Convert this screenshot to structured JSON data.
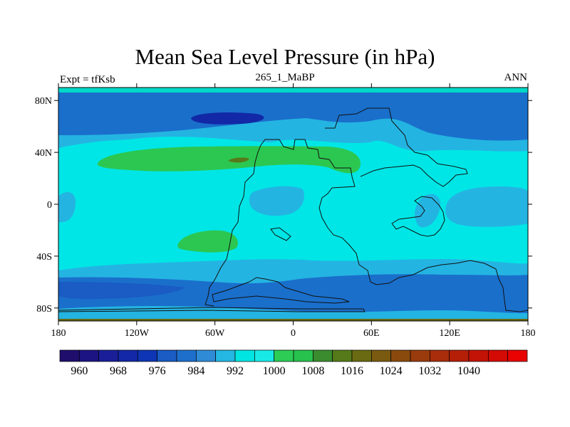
{
  "title": "Mean Sea Level Pressure (in hPa)",
  "subtitle_left": "Expt = tfKsb",
  "subtitle_center": "265_1_MaBP",
  "subtitle_right": "ANN",
  "map": {
    "lon_range": [
      -180,
      180
    ],
    "lat_range": [
      -90,
      90
    ],
    "lon_ticks": [
      {
        "value": -180,
        "label": "180"
      },
      {
        "value": -120,
        "label": "120W"
      },
      {
        "value": -60,
        "label": "60W"
      },
      {
        "value": 0,
        "label": "0"
      },
      {
        "value": 60,
        "label": "60E"
      },
      {
        "value": 120,
        "label": "120E"
      },
      {
        "value": 180,
        "label": "180"
      }
    ],
    "lat_ticks": [
      {
        "value": 80,
        "label": "80N"
      },
      {
        "value": 40,
        "label": "40N"
      },
      {
        "value": 0,
        "label": "0"
      },
      {
        "value": -40,
        "label": "40S"
      },
      {
        "value": -80,
        "label": "80S"
      }
    ]
  },
  "colorbar": {
    "colors": [
      "#1f0e6b",
      "#1d1483",
      "#1a1f98",
      "#1228a6",
      "#0e36b4",
      "#1a5bc4",
      "#1e6fcb",
      "#2f8bd6",
      "#24b7e2",
      "#00e5e2",
      "#18e9e6",
      "#2ccc55",
      "#27c14e",
      "#3a8c2e",
      "#567a1a",
      "#6a6a12",
      "#7a5a10",
      "#8a4a0e",
      "#993b0c",
      "#a82d0a",
      "#b51f08",
      "#c31206",
      "#d40a04",
      "#e80202"
    ],
    "labels": [
      "960",
      "968",
      "976",
      "984",
      "992",
      "1000",
      "1008",
      "1016",
      "1024",
      "1032",
      "1040"
    ]
  },
  "fields": {
    "background_color": "#00e6e6",
    "band_color_light": "#24b4e2",
    "band_color_mid": "#1a6fcb",
    "low_color": "#1228a6",
    "high_color": "#2cc750",
    "peak_color": "#567a1a",
    "coastline_color": "#111111"
  }
}
